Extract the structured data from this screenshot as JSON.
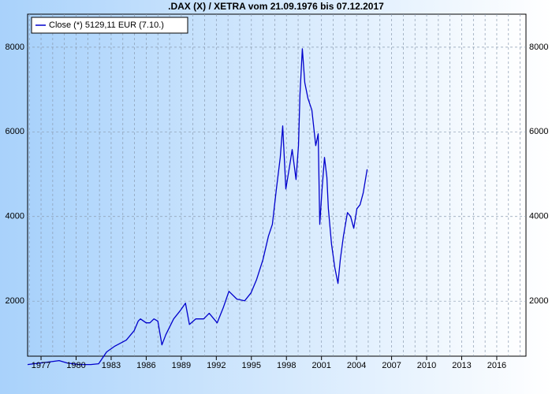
{
  "chart_data": {
    "type": "line",
    "title": ".DAX (X) / XETRA vom 21.09.1976 bis 07.12.2017",
    "x": [
      1975.85,
      1977.54,
      1978.55,
      1979.23,
      1980.24,
      1981.26,
      1981.93,
      1982.61,
      1983.28,
      1984.3,
      1984.97,
      1985.31,
      1985.51,
      1985.99,
      1986.32,
      1986.66,
      1987.0,
      1987.34,
      1987.68,
      1988.35,
      1988.89,
      1989.36,
      1989.7,
      1990.24,
      1990.92,
      1991.39,
      1992.07,
      1992.61,
      1993.08,
      1993.76,
      1994.43,
      1994.97,
      1995.45,
      1995.99,
      1996.46,
      1996.8,
      1997.14,
      1997.47,
      1997.68,
      1997.95,
      1998.28,
      1998.49,
      1998.82,
      1999.03,
      1999.16,
      1999.36,
      1999.57,
      1999.84,
      2000.18,
      2000.51,
      2000.72,
      2000.85,
      2001.05,
      2001.26,
      2001.46,
      2001.59,
      2001.86,
      2002.14,
      2002.41,
      2002.61,
      2002.88,
      2003.22,
      2003.49,
      2003.76,
      2004.03,
      2004.3,
      2004.57,
      2004.91
    ],
    "series": [
      {
        "name": "Close (*) 5129,11 EUR (7.10.)",
        "color": "#0000cc",
        "values": [
          502,
          558,
          595,
          540,
          502,
          502,
          521,
          800,
          930,
          1079,
          1302,
          1526,
          1581,
          1488,
          1488,
          1581,
          1526,
          967,
          1209,
          1581,
          1767,
          1953,
          1451,
          1581,
          1581,
          1712,
          1488,
          1860,
          2233,
          2047,
          2009,
          2195,
          2512,
          2977,
          3535,
          3814,
          4651,
          5395,
          6140,
          4651,
          5209,
          5581,
          4874,
          5674,
          6884,
          7963,
          7163,
          6791,
          6512,
          5674,
          5953,
          3814,
          4651,
          5395,
          4930,
          4186,
          3349,
          2791,
          2419,
          2977,
          3535,
          4093,
          4000,
          3721,
          4186,
          4279,
          4558,
          5116
        ]
      }
    ],
    "xlim": [
      1975.85,
      2018.5
    ],
    "xticks": [
      1977,
      1980,
      1983,
      1986,
      1989,
      1992,
      1995,
      1998,
      2001,
      2004,
      2007,
      2010,
      2013,
      2016
    ],
    "xminorticks": [
      1976,
      1977,
      1978,
      1979,
      1980,
      1981,
      1982,
      1983,
      1984,
      1985,
      1986,
      1987,
      1988,
      1989,
      1990,
      1991,
      1992,
      1993,
      1994,
      1995,
      1996,
      1997,
      1998,
      1999,
      2000,
      2001,
      2002,
      2003,
      2004,
      2005,
      2006,
      2007,
      2008,
      2009,
      2010,
      2011,
      2012,
      2013,
      2014,
      2015,
      2016,
      2017,
      2018
    ],
    "ylim": [
      700,
      8780
    ],
    "yticks": [
      2000,
      4000,
      6000,
      8000
    ],
    "grid": true,
    "legend": "top-left"
  }
}
